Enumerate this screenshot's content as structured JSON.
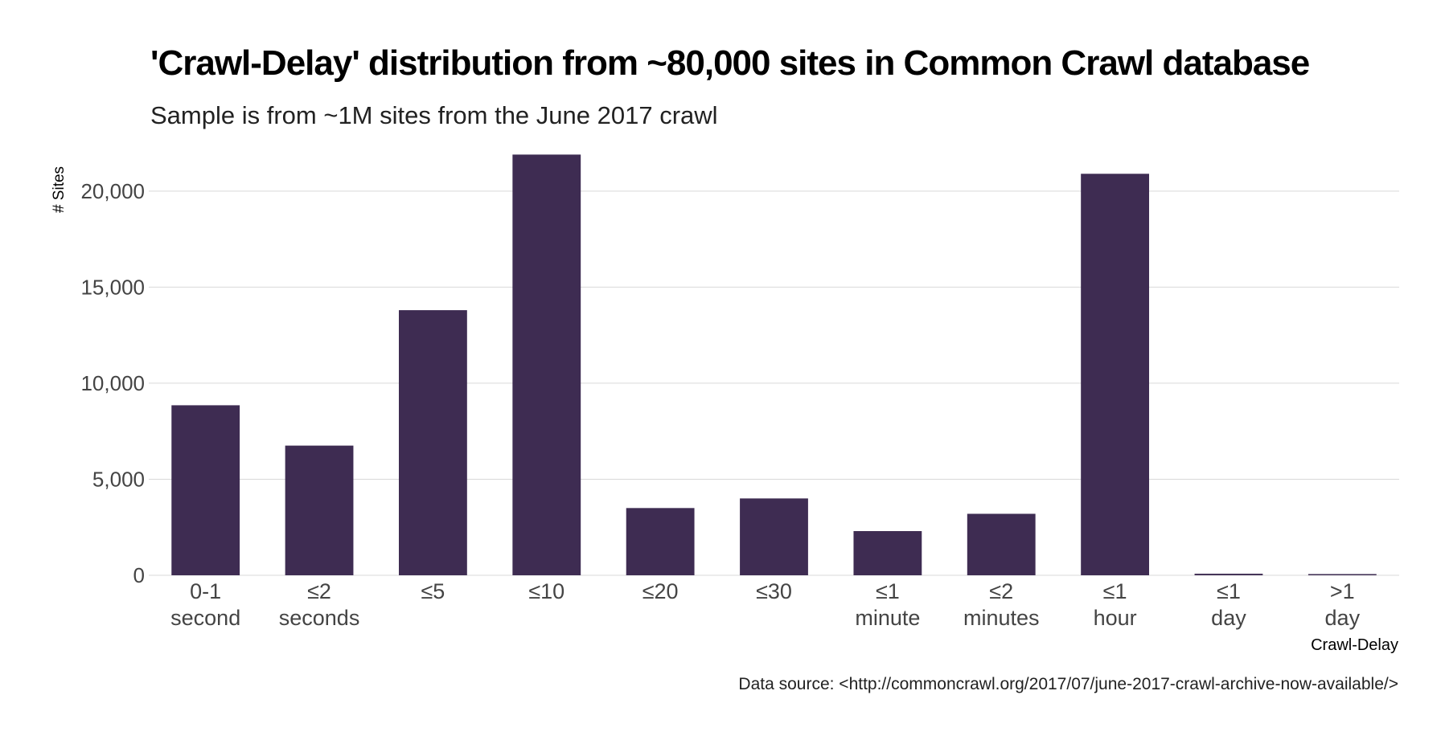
{
  "chart_data": {
    "type": "bar",
    "title": "'Crawl-Delay' distribution from ~80,000 sites in Common Crawl database",
    "subtitle": "Sample is from ~1M sites from the June 2017 crawl",
    "xlabel": "Crawl-Delay",
    "ylabel": "# Sites",
    "caption": "Data source: <http://commoncrawl.org/2017/07/june-2017-crawl-archive-now-available/>",
    "categories": [
      [
        "0-1",
        "second"
      ],
      [
        "≤2",
        "seconds"
      ],
      [
        "≤5"
      ],
      [
        "≤10"
      ],
      [
        "≤20"
      ],
      [
        "≤30"
      ],
      [
        "≤1",
        "minute"
      ],
      [
        "≤2",
        "minutes"
      ],
      [
        "≤1",
        "hour"
      ],
      [
        "≤1",
        "day"
      ],
      [
        ">1",
        "day"
      ]
    ],
    "values": [
      8850,
      6750,
      13800,
      21900,
      3500,
      4000,
      2300,
      3200,
      20900,
      80,
      40
    ],
    "ylim": [
      0,
      22000
    ],
    "yticks": [
      0,
      5000,
      10000,
      15000,
      20000
    ],
    "ytick_labels": [
      "0",
      "5,000",
      "10,000",
      "15,000",
      "20,000"
    ],
    "grid": "horizontal major",
    "legend": "none",
    "colors": {
      "bar": "#3e2c52",
      "grid": "#d9d9d9",
      "tick_text": "#444444"
    }
  }
}
